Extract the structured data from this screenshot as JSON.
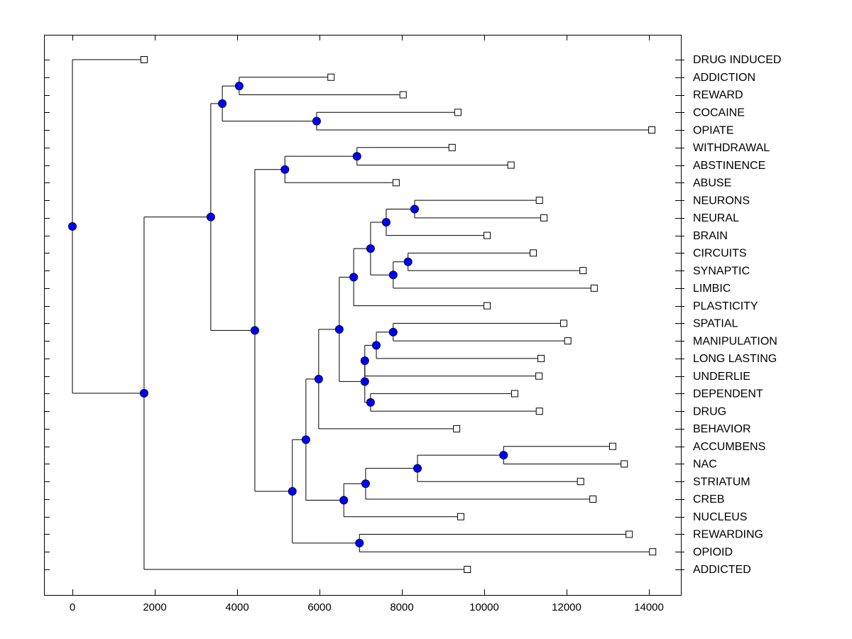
{
  "chart_data": {
    "type": "dendrogram",
    "title": "",
    "xlabel": "",
    "ylabel": "",
    "xlim": [
      -700,
      15500
    ],
    "x_ticks": [
      0,
      2000,
      4000,
      6000,
      8000,
      10000,
      12000,
      14000
    ],
    "x_tick_labels": [
      "0",
      "2000",
      "4000",
      "6000",
      "8000",
      "10000",
      "12000",
      "14000"
    ],
    "grid": false,
    "leaf_label_position": "right",
    "colors": {
      "node": "#0000ff",
      "leaf": "#ffffff",
      "line": "#000000"
    },
    "leaves": [
      {
        "label": "DRUG INDUCED",
        "value": 1740
      },
      {
        "label": "ADDICTION",
        "value": 6280
      },
      {
        "label": "REWARD",
        "value": 8030
      },
      {
        "label": "COCAINE",
        "value": 9360
      },
      {
        "label": "OPIATE",
        "value": 14070
      },
      {
        "label": "WITHDRAWAL",
        "value": 9220
      },
      {
        "label": "ABSTINENCE",
        "value": 10650
      },
      {
        "label": "ABUSE",
        "value": 7860
      },
      {
        "label": "NEURONS",
        "value": 11340
      },
      {
        "label": "NEURAL",
        "value": 11450
      },
      {
        "label": "BRAIN",
        "value": 10070
      },
      {
        "label": "CIRCUITS",
        "value": 11190
      },
      {
        "label": "SYNAPTIC",
        "value": 12400
      },
      {
        "label": "LIMBIC",
        "value": 12670
      },
      {
        "label": "PLASTICITY",
        "value": 10070
      },
      {
        "label": "SPATIAL",
        "value": 11930
      },
      {
        "label": "MANIPULATION",
        "value": 12030
      },
      {
        "label": "LONG LASTING",
        "value": 11380
      },
      {
        "label": "UNDERLIE",
        "value": 11330
      },
      {
        "label": "DEPENDENT",
        "value": 10740
      },
      {
        "label": "DRUG",
        "value": 11340
      },
      {
        "label": "BEHAVIOR",
        "value": 9330
      },
      {
        "label": "ACCUMBENS",
        "value": 13120
      },
      {
        "label": "NAC",
        "value": 13400
      },
      {
        "label": "STRIATUM",
        "value": 12340
      },
      {
        "label": "CREB",
        "value": 12640
      },
      {
        "label": "NUCLEUS",
        "value": 9430
      },
      {
        "label": "REWARDING",
        "value": 13520
      },
      {
        "label": "OPIOID",
        "value": 14090
      },
      {
        "label": "ADDICTED",
        "value": 9590
      }
    ],
    "tree": {
      "value": 0,
      "children": [
        {
          "leaf": 0
        },
        {
          "value": 1740,
          "children": [
            {
              "value": 3360,
              "children": [
                {
                  "value": 3640,
                  "children": [
                    {
                      "value": 4050,
                      "children": [
                        {
                          "leaf": 1
                        },
                        {
                          "leaf": 2
                        }
                      ]
                    },
                    {
                      "value": 5930,
                      "children": [
                        {
                          "leaf": 3
                        },
                        {
                          "leaf": 4
                        }
                      ]
                    }
                  ]
                },
                {
                  "value": 4430,
                  "children": [
                    {
                      "value": 5160,
                      "children": [
                        {
                          "value": 6910,
                          "children": [
                            {
                              "leaf": 5
                            },
                            {
                              "leaf": 6
                            }
                          ]
                        },
                        {
                          "leaf": 7
                        }
                      ]
                    },
                    {
                      "value": 5340,
                      "children": [
                        {
                          "value": 5670,
                          "children": [
                            {
                              "value": 5980,
                              "children": [
                                {
                                  "value": 6480,
                                  "children": [
                                    {
                                      "value": 6830,
                                      "children": [
                                        {
                                          "value": 7240,
                                          "children": [
                                            {
                                              "value": 7620,
                                              "children": [
                                                {
                                                  "value": 8310,
                                                  "children": [
                                                    {
                                                      "leaf": 8
                                                    },
                                                    {
                                                      "leaf": 9
                                                    }
                                                  ]
                                                },
                                                {
                                                  "leaf": 10
                                                }
                                              ]
                                            },
                                            {
                                              "value": 7790,
                                              "children": [
                                                {
                                                  "value": 8150,
                                                  "children": [
                                                    {
                                                      "leaf": 11
                                                    },
                                                    {
                                                      "leaf": 12
                                                    }
                                                  ]
                                                },
                                                {
                                                  "leaf": 13
                                                }
                                              ]
                                            }
                                          ]
                                        },
                                        {
                                          "leaf": 14
                                        }
                                      ]
                                    },
                                    {
                                      "value": 7100,
                                      "children": [
                                        {
                                          "value": 7100,
                                          "children": [
                                            {
                                              "value": 7380,
                                              "children": [
                                                {
                                                  "value": 7790,
                                                  "children": [
                                                    {
                                                      "leaf": 15
                                                    },
                                                    {
                                                      "leaf": 16
                                                    }
                                                  ]
                                                },
                                                {
                                                  "leaf": 17
                                                }
                                              ]
                                            },
                                            {
                                              "leaf": 18
                                            }
                                          ]
                                        },
                                        {
                                          "value": 7240,
                                          "children": [
                                            {
                                              "leaf": 19
                                            },
                                            {
                                              "leaf": 20
                                            }
                                          ]
                                        }
                                      ]
                                    }
                                  ]
                                },
                                {
                                  "leaf": 21
                                }
                              ]
                            },
                            {
                              "value": 6590,
                              "children": [
                                {
                                  "value": 7120,
                                  "children": [
                                    {
                                      "value": 8380,
                                      "children": [
                                        {
                                          "value": 10470,
                                          "children": [
                                            {
                                              "leaf": 22
                                            },
                                            {
                                              "leaf": 23
                                            }
                                          ]
                                        },
                                        {
                                          "leaf": 24
                                        }
                                      ]
                                    },
                                    {
                                      "leaf": 25
                                    }
                                  ]
                                },
                                {
                                  "leaf": 26
                                }
                              ]
                            }
                          ]
                        },
                        {
                          "value": 6970,
                          "children": [
                            {
                              "leaf": 27
                            },
                            {
                              "leaf": 28
                            }
                          ]
                        }
                      ]
                    }
                  ]
                }
              ]
            },
            {
              "leaf": 29
            }
          ]
        }
      ]
    }
  }
}
